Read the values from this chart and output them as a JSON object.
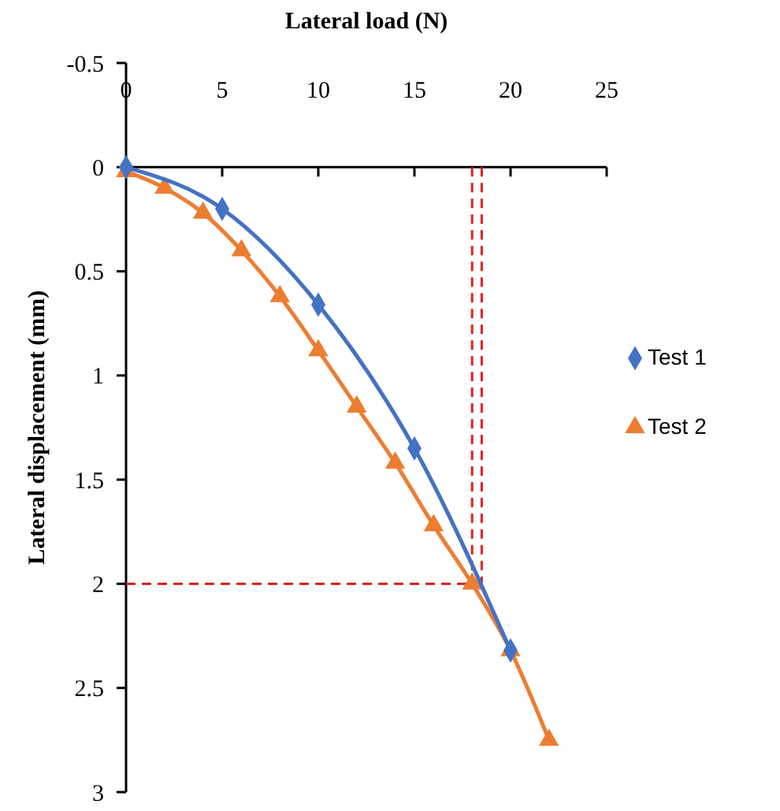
{
  "chart_data": {
    "type": "line",
    "xlabel": "Lateral load (N)",
    "ylabel": "Lateral displacement (mm)",
    "xlim": [
      0,
      25
    ],
    "xticks": [
      0,
      5,
      10,
      15,
      20,
      25
    ],
    "ylim": [
      3,
      -0.5
    ],
    "yticks": [
      -0.5,
      0,
      0.5,
      1,
      1.5,
      2,
      2.5,
      3
    ],
    "series": [
      {
        "name": "Test 1",
        "color": "#4472c4",
        "marker": "diamond",
        "x": [
          0,
          5,
          10,
          15,
          20
        ],
        "values": [
          0,
          0.2,
          0.66,
          1.35,
          2.32
        ]
      },
      {
        "name": "Test 2",
        "color": "#ed7d31",
        "marker": "triangle",
        "x": [
          0,
          2,
          4,
          6,
          8,
          10,
          12,
          14,
          16,
          18,
          20,
          22
        ],
        "values": [
          0.02,
          0.1,
          0.22,
          0.4,
          0.62,
          0.88,
          1.15,
          1.42,
          1.72,
          2.0,
          2.32,
          2.75
        ]
      }
    ],
    "ref_lines": [
      {
        "axis": "x",
        "value": 18,
        "color": "#e02020",
        "line_style": "dashed"
      },
      {
        "axis": "x",
        "value": 18.5,
        "color": "#e02020",
        "line_style": "dashed"
      },
      {
        "axis": "y",
        "value": 2,
        "color": "#e02020",
        "line_style": "dashed"
      }
    ],
    "grid": false,
    "legend": "right",
    "line_style": "solid"
  }
}
